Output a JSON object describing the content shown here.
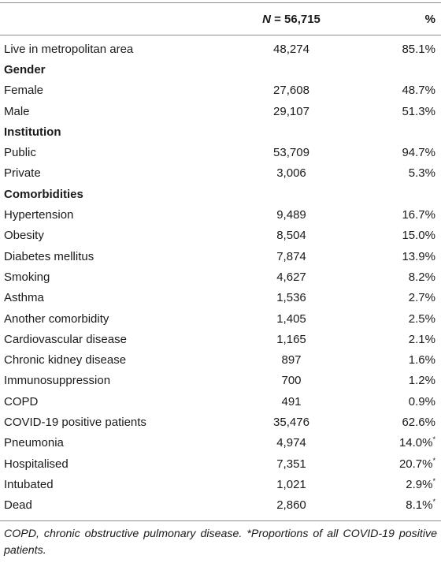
{
  "table": {
    "header": {
      "n_symbol": "N",
      "n_value": " = 56,715",
      "pct": "%"
    },
    "rows": [
      {
        "label": "Live in metropolitan area",
        "n": "48,274",
        "pct": "85.1%",
        "section": false
      },
      {
        "label": "Gender",
        "n": "",
        "pct": "",
        "section": true
      },
      {
        "label": "Female",
        "n": "27,608",
        "pct": "48.7%",
        "section": false
      },
      {
        "label": "Male",
        "n": "29,107",
        "pct": "51.3%",
        "section": false
      },
      {
        "label": "Institution",
        "n": "",
        "pct": "",
        "section": true
      },
      {
        "label": "Public",
        "n": "53,709",
        "pct": "94.7%",
        "section": false
      },
      {
        "label": "Private",
        "n": "3,006",
        "pct": "5.3%",
        "section": false
      },
      {
        "label": "Comorbidities",
        "n": "",
        "pct": "",
        "section": true
      },
      {
        "label": "Hypertension",
        "n": "9,489",
        "pct": "16.7%",
        "section": false
      },
      {
        "label": "Obesity",
        "n": "8,504",
        "pct": "15.0%",
        "section": false
      },
      {
        "label": "Diabetes mellitus",
        "n": "7,874",
        "pct": "13.9%",
        "section": false
      },
      {
        "label": "Smoking",
        "n": "4,627",
        "pct": "8.2%",
        "section": false
      },
      {
        "label": "Asthma",
        "n": "1,536",
        "pct": "2.7%",
        "section": false
      },
      {
        "label": "Another comorbidity",
        "n": "1,405",
        "pct": "2.5%",
        "section": false
      },
      {
        "label": "Cardiovascular disease",
        "n": "1,165",
        "pct": "2.1%",
        "section": false
      },
      {
        "label": "Chronic kidney disease",
        "n": "897",
        "pct": "1.6%",
        "section": false
      },
      {
        "label": "Immunosuppression",
        "n": "700",
        "pct": "1.2%",
        "section": false
      },
      {
        "label": "COPD",
        "n": "491",
        "pct": "0.9%",
        "section": false
      },
      {
        "label": "COVID-19 positive patients",
        "n": "35,476",
        "pct": "62.6%",
        "section": false
      },
      {
        "label": "Pneumonia",
        "n": "4,974",
        "pct": "14.0%",
        "mark": "*",
        "section": false
      },
      {
        "label": "Hospitalised",
        "n": "7,351",
        "pct": "20.7%",
        "mark": "*",
        "section": false
      },
      {
        "label": "Intubated",
        "n": "1,021",
        "pct": "2.9%",
        "mark": "*",
        "section": false
      },
      {
        "label": "Dead",
        "n": "2,860",
        "pct": "8.1%",
        "mark": "*",
        "section": false
      }
    ]
  },
  "footnote": "COPD, chronic obstructive pulmonary disease. *Proportions of all COVID-19 positive patients."
}
